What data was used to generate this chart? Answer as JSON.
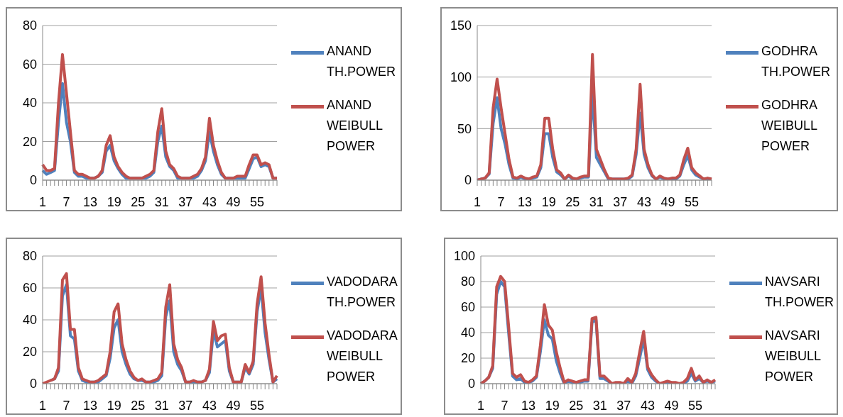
{
  "chart_data": [
    {
      "type": "line",
      "categories": [
        "1",
        null,
        null,
        null,
        null,
        null,
        "7",
        null,
        null,
        null,
        null,
        null,
        "13",
        null,
        null,
        null,
        null,
        null,
        "19",
        null,
        null,
        null,
        null,
        null,
        "25",
        null,
        null,
        null,
        null,
        null,
        "31",
        null,
        null,
        null,
        null,
        null,
        "37",
        null,
        null,
        null,
        null,
        null,
        "43",
        null,
        null,
        null,
        null,
        null,
        "49",
        null,
        null,
        null,
        null,
        null,
        "55",
        null,
        null,
        null,
        null,
        null
      ],
      "ylim": [
        0,
        80
      ],
      "yticks": [
        0,
        20,
        40,
        60,
        80
      ],
      "grid": "y",
      "legend": "right",
      "marker": "none",
      "series": [
        {
          "name": "ANAND TH.POWER",
          "color": "#4f81bd",
          "values": [
            5,
            3,
            4,
            5,
            30,
            50,
            30,
            20,
            4,
            2,
            2,
            1,
            1,
            1,
            2,
            4,
            15,
            18,
            10,
            6,
            3,
            1,
            1,
            1,
            1,
            1,
            1,
            2,
            4,
            20,
            28,
            12,
            7,
            5,
            1,
            1,
            1,
            1,
            1,
            2,
            5,
            10,
            25,
            15,
            8,
            3,
            1,
            1,
            1,
            1,
            1,
            1,
            6,
            11,
            12,
            7,
            8,
            7,
            1,
            1
          ]
        },
        {
          "name": "ANAND WEIBULL POWER",
          "color": "#c0504d",
          "values": [
            8,
            5,
            5,
            6,
            40,
            65,
            45,
            25,
            5,
            3,
            3,
            2,
            1,
            1,
            2,
            5,
            18,
            23,
            12,
            7,
            4,
            2,
            1,
            1,
            1,
            1,
            2,
            3,
            5,
            25,
            37,
            15,
            8,
            6,
            2,
            1,
            1,
            1,
            2,
            3,
            6,
            12,
            32,
            18,
            10,
            4,
            1,
            1,
            1,
            2,
            2,
            2,
            8,
            13,
            13,
            8,
            9,
            8,
            1,
            1
          ]
        }
      ]
    },
    {
      "type": "line",
      "categories": [
        "1",
        null,
        null,
        null,
        null,
        null,
        "7",
        null,
        null,
        null,
        null,
        null,
        "13",
        null,
        null,
        null,
        null,
        null,
        "19",
        null,
        null,
        null,
        null,
        null,
        "25",
        null,
        null,
        null,
        null,
        null,
        "31",
        null,
        null,
        null,
        null,
        null,
        "37",
        null,
        null,
        null,
        null,
        null,
        "43",
        null,
        null,
        null,
        null,
        null,
        "49",
        null,
        null,
        null,
        null,
        null,
        "55",
        null,
        null,
        null,
        null,
        null
      ],
      "ylim": [
        0,
        150
      ],
      "yticks": [
        0,
        50,
        100,
        150
      ],
      "grid": "y",
      "legend": "right",
      "marker": "none",
      "series": [
        {
          "name": "GODHRA TH.POWER",
          "color": "#4f81bd",
          "values": [
            0,
            1,
            2,
            6,
            55,
            80,
            50,
            35,
            15,
            2,
            1,
            3,
            1,
            1,
            2,
            3,
            12,
            45,
            45,
            22,
            8,
            5,
            1,
            4,
            1,
            1,
            2,
            3,
            3,
            85,
            22,
            15,
            8,
            1,
            1,
            1,
            1,
            1,
            1,
            4,
            25,
            65,
            25,
            12,
            4,
            1,
            3,
            1,
            1,
            1,
            1,
            4,
            15,
            24,
            10,
            5,
            3,
            1,
            1,
            1
          ]
        },
        {
          "name": "GODHRA WEIBULL POWER",
          "color": "#c0504d",
          "values": [
            0,
            1,
            2,
            7,
            70,
            98,
            70,
            45,
            20,
            3,
            2,
            4,
            2,
            1,
            3,
            4,
            15,
            60,
            60,
            30,
            10,
            7,
            1,
            5,
            2,
            1,
            3,
            4,
            4,
            122,
            30,
            20,
            10,
            2,
            1,
            1,
            1,
            1,
            2,
            5,
            30,
            93,
            30,
            15,
            5,
            1,
            4,
            2,
            1,
            2,
            2,
            5,
            20,
            31,
            12,
            7,
            4,
            1,
            2,
            1
          ]
        }
      ]
    },
    {
      "type": "line",
      "categories": [
        "1",
        null,
        null,
        null,
        null,
        null,
        "7",
        null,
        null,
        null,
        null,
        null,
        "13",
        null,
        null,
        null,
        null,
        null,
        "19",
        null,
        null,
        null,
        null,
        null,
        "25",
        null,
        null,
        null,
        null,
        null,
        "31",
        null,
        null,
        null,
        null,
        null,
        "37",
        null,
        null,
        null,
        null,
        null,
        "43",
        null,
        null,
        null,
        null,
        null,
        "49",
        null,
        null,
        null,
        null,
        null,
        "55",
        null,
        null,
        null,
        null,
        null
      ],
      "ylim": [
        0,
        80
      ],
      "yticks": [
        0,
        20,
        40,
        60,
        80
      ],
      "grid": "y",
      "legend": "right",
      "marker": "none",
      "series": [
        {
          "name": "VADODARA TH.POWER",
          "color": "#4f81bd",
          "values": [
            null,
            null,
            2,
            3,
            8,
            55,
            62,
            30,
            28,
            8,
            2,
            1,
            1,
            1,
            1,
            3,
            5,
            16,
            35,
            40,
            20,
            12,
            6,
            3,
            2,
            2,
            1,
            1,
            1,
            2,
            5,
            42,
            52,
            20,
            12,
            8,
            1,
            1,
            1,
            1,
            1,
            2,
            7,
            33,
            23,
            25,
            27,
            8,
            1,
            1,
            1,
            10,
            6,
            12,
            45,
            60,
            32,
            15,
            1,
            3
          ]
        },
        {
          "name": "VADODARA WEIBULL POWER",
          "color": "#c0504d",
          "values": [
            0,
            1,
            2,
            3,
            10,
            65,
            69,
            34,
            34,
            10,
            3,
            2,
            1,
            1,
            2,
            4,
            6,
            20,
            45,
            50,
            25,
            15,
            8,
            4,
            2,
            3,
            1,
            1,
            2,
            3,
            7,
            48,
            62,
            25,
            15,
            10,
            1,
            1,
            2,
            1,
            1,
            2,
            9,
            39,
            27,
            30,
            31,
            10,
            1,
            1,
            1,
            12,
            7,
            14,
            50,
            67,
            38,
            18,
            1,
            5
          ]
        }
      ]
    },
    {
      "type": "line",
      "categories": [
        "1",
        null,
        null,
        null,
        null,
        null,
        "7",
        null,
        null,
        null,
        null,
        null,
        "13",
        null,
        null,
        null,
        null,
        null,
        "19",
        null,
        null,
        null,
        null,
        null,
        "25",
        null,
        null,
        null,
        null,
        null,
        "31",
        null,
        null,
        null,
        null,
        null,
        "37",
        null,
        null,
        null,
        null,
        null,
        "43",
        null,
        null,
        null,
        null,
        null,
        "49",
        null,
        null,
        null,
        null,
        null,
        "55",
        null,
        null,
        null,
        null,
        null
      ],
      "ylim": [
        0,
        100
      ],
      "yticks": [
        0,
        20,
        40,
        60,
        80,
        100
      ],
      "grid": "y",
      "legend": "right",
      "marker": "none",
      "series": [
        {
          "name": "NAVSARI TH.POWER",
          "color": "#4f81bd",
          "values": [
            0,
            2,
            5,
            12,
            70,
            80,
            76,
            40,
            6,
            3,
            4,
            1,
            1,
            2,
            5,
            25,
            50,
            38,
            35,
            18,
            8,
            0,
            2,
            1,
            1,
            1,
            2,
            2,
            48,
            50,
            4,
            4,
            2,
            0,
            0,
            0,
            0,
            2,
            0,
            6,
            20,
            35,
            11,
            5,
            2,
            0,
            0,
            1,
            0,
            0,
            0,
            0,
            2,
            8,
            2,
            4,
            1,
            2,
            1,
            2
          ]
        },
        {
          "name": "NAVSARI WEIBULL POWER",
          "color": "#c0504d",
          "values": [
            0,
            2,
            5,
            14,
            76,
            84,
            80,
            45,
            8,
            5,
            7,
            2,
            1,
            3,
            6,
            30,
            62,
            46,
            42,
            25,
            12,
            1,
            3,
            2,
            1,
            2,
            3,
            3,
            51,
            52,
            6,
            6,
            3,
            0,
            1,
            1,
            0,
            4,
            1,
            8,
            25,
            41,
            13,
            7,
            3,
            0,
            1,
            2,
            1,
            1,
            0,
            1,
            4,
            12,
            3,
            6,
            1,
            3,
            1,
            3
          ]
        }
      ]
    }
  ]
}
